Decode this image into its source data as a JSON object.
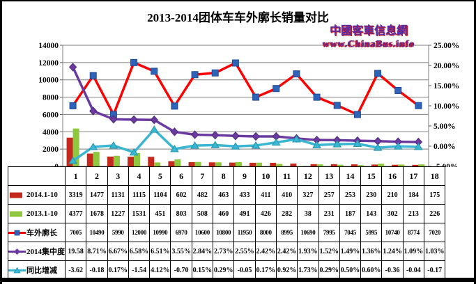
{
  "title": "2013-2014团体车车外廓长销量对比",
  "watermark": {
    "line1": "中國客車信息網",
    "line2": "www.ChinaBus.info"
  },
  "chart_data": {
    "type": "bar+line combo chart with data table",
    "title": "2013-2014团体车车外廓长销量对比",
    "categories": [
      "1",
      "2",
      "3",
      "4",
      "5",
      "6",
      "7",
      "8",
      "9",
      "10",
      "11",
      "12",
      "13",
      "14",
      "15",
      "16",
      "17",
      "18"
    ],
    "left_axis": {
      "min": 0,
      "max": 14000,
      "step": 2000,
      "tick_labels": [
        "14000",
        "12000",
        "10000",
        "8000",
        "6000",
        "4000",
        "2000",
        "0"
      ]
    },
    "right_axis": {
      "min": -5,
      "max": 25,
      "step": 5,
      "tick_labels": [
        "25.00%",
        "20.00%",
        "15.00%",
        "10.00%",
        "5.00%",
        "0.00%",
        "-5.00%"
      ]
    },
    "grid": "horizontal-only",
    "legend_position": "table-left-column",
    "series": [
      {
        "name": "2014.1-10",
        "kind": "bar",
        "axis": "left",
        "color": "#C5281C",
        "values": [
          3319,
          1477,
          1131,
          1115,
          1104,
          602,
          482,
          463,
          433,
          411,
          410,
          327,
          257,
          253,
          230,
          210,
          184,
          175
        ],
        "cells": [
          "3319",
          "1477",
          "1131",
          "1115",
          "1104",
          "602",
          "482",
          "463",
          "433",
          "411",
          "410",
          "327",
          "257",
          "253",
          "230",
          "210",
          "184",
          "175"
        ]
      },
      {
        "name": "2013.1-10",
        "kind": "bar",
        "axis": "left",
        "color": "#8FC73E",
        "values": [
          4377,
          1678,
          1227,
          1531,
          451,
          803,
          508,
          460,
          491,
          426,
          282,
          38,
          231,
          187,
          143,
          302,
          213,
          226
        ],
        "cells": [
          "4377",
          "1678",
          "1227",
          "1531",
          "451",
          "803",
          "508",
          "460",
          "491",
          "426",
          "282",
          "38",
          "231",
          "187",
          "143",
          "302",
          "213",
          "226"
        ]
      },
      {
        "name": "车外廓长",
        "kind": "line",
        "marker": "square",
        "axis": "left",
        "color": "#FE0000",
        "marker_color": "#2E63B8",
        "marker_stroke": "#1D4B9C",
        "values": [
          7005,
          10490,
          5990,
          12000,
          10990,
          6970,
          10600,
          10800,
          11950,
          8000,
          8995,
          10690,
          7995,
          7045,
          5995,
          10740,
          8774,
          7020
        ],
        "cells": [
          "7005",
          "10490",
          "5990",
          "12000",
          "10990",
          "6970",
          "10600",
          "10800",
          "11950",
          "8000",
          "8995",
          "10690",
          "7995",
          "7045",
          "5995",
          "10740",
          "8774",
          "7020"
        ]
      },
      {
        "name": "2014集中度",
        "kind": "line",
        "marker": "diamond",
        "axis": "right",
        "color": "#6B3AA0",
        "marker_color": "#6B3AA0",
        "marker_stroke": "#4E2B78",
        "values": [
          19.58,
          8.71,
          6.67,
          6.58,
          6.51,
          3.55,
          2.84,
          2.73,
          2.55,
          2.42,
          2.42,
          1.93,
          1.52,
          1.49,
          1.36,
          1.24,
          1.09,
          1.03
        ],
        "cells": [
          "19.58",
          "8.71%",
          "6.67%",
          "6.58%",
          "6.51%",
          "3.55%",
          "2.84%",
          "2.73%",
          "2.55%",
          "2.42%",
          "2.42%",
          "1.93%",
          "1.52%",
          "1.49%",
          "1.36%",
          "1.24%",
          "1.09%",
          "1.03%"
        ]
      },
      {
        "name": "同比增减",
        "kind": "line",
        "marker": "triangle",
        "axis": "right",
        "color": "#3AB6D2",
        "marker_color": "#3AB6D2",
        "marker_stroke": "#2596AE",
        "values": [
          -3.62,
          -0.18,
          0.17,
          -1.54,
          4.12,
          -0.7,
          0.15,
          0.29,
          -0.05,
          0.17,
          0.92,
          1.73,
          0.29,
          0.5,
          0.6,
          -0.36,
          -0.04,
          -0.17
        ],
        "cells": [
          "-3.62",
          "-0.18",
          "0.17%",
          "-1.54",
          "4.12%",
          "-0.70",
          "0.15%",
          "0.29%",
          "-0.05",
          "0.17%",
          "0.92%",
          "1.73%",
          "0.29%",
          "0.50%",
          "0.60%",
          "-0.36",
          "-0.04",
          "-0.17"
        ]
      }
    ]
  }
}
